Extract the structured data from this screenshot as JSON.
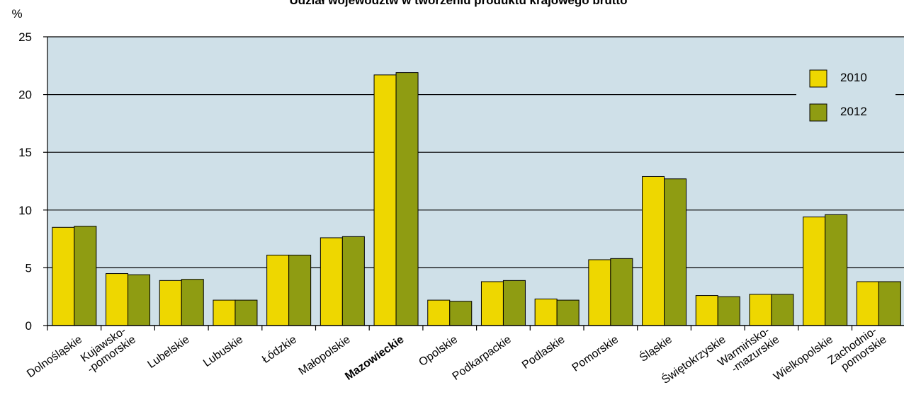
{
  "chart_data": {
    "type": "bar",
    "title": "Udział województw w tworzeniu produktu krajowego brutto",
    "ylabel": "%",
    "xlabel": "",
    "ylim": [
      0,
      25
    ],
    "yticks": [
      0,
      5,
      10,
      15,
      20,
      25
    ],
    "grid": true,
    "legend_position": "top-right",
    "categories": [
      [
        "Dolnośląskie"
      ],
      [
        "Kujawsko-",
        "-pomorskie"
      ],
      [
        "Lubelskie"
      ],
      [
        "Lubuskie"
      ],
      [
        "Łódzkie"
      ],
      [
        "Małopolskie"
      ],
      [
        "Mazowieckie"
      ],
      [
        "Opolskie"
      ],
      [
        "Podkarpackie"
      ],
      [
        "Podlaskie"
      ],
      [
        "Pomorskie"
      ],
      [
        "Śląskie"
      ],
      [
        "Świętokrzyskie"
      ],
      [
        "Warmińsko-",
        "-mazurskie"
      ],
      [
        "Wielkopolskie"
      ],
      [
        "Zachodnio-",
        "pomorskie"
      ]
    ],
    "bold_category_index": 6,
    "series": [
      {
        "name": "2010",
        "color": "#eed700",
        "values": [
          8.5,
          4.5,
          3.9,
          2.2,
          6.1,
          7.6,
          21.7,
          2.2,
          3.8,
          2.3,
          5.7,
          12.9,
          2.6,
          2.7,
          9.4,
          3.8
        ]
      },
      {
        "name": "2012",
        "color": "#8f9c12",
        "values": [
          8.6,
          4.4,
          4.0,
          2.2,
          6.1,
          7.7,
          21.9,
          2.1,
          3.9,
          2.2,
          5.8,
          12.7,
          2.5,
          2.7,
          9.6,
          3.8
        ]
      }
    ],
    "plot_background": "#cfe0e8"
  }
}
